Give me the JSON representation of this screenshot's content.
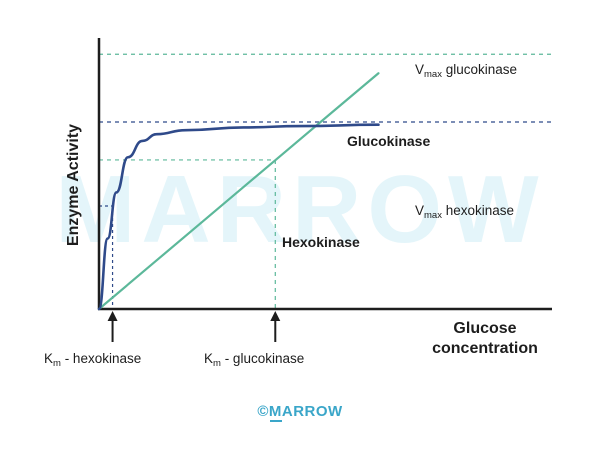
{
  "chart_data": {
    "type": "line",
    "ylabel": "Enzyme Activity",
    "xlabel_line1": "Glucose",
    "xlabel_line2": "concentration",
    "xlim": [
      0,
      10
    ],
    "ylim": [
      0,
      10
    ],
    "series": [
      {
        "name": "Glucokinase",
        "color": "#5cb89a",
        "x": [
          0,
          2,
          4,
          6,
          8,
          9.67
        ],
        "y": [
          0,
          1.8,
          3.6,
          5.4,
          7.2,
          8.7
        ]
      },
      {
        "name": "Hexokinase",
        "color": "#2f4a8a",
        "x": [
          0,
          0.3,
          0.6,
          1,
          1.5,
          2,
          3,
          5,
          7,
          9.67
        ],
        "y": [
          0,
          2.6,
          4.3,
          5.6,
          6.2,
          6.45,
          6.6,
          6.7,
          6.75,
          6.8
        ]
      }
    ],
    "reference_lines": {
      "vmax_glucokinase": {
        "y": 9.4,
        "label_main": "V",
        "label_sub": "max",
        "label_rest": " glucokinase"
      },
      "vmax_hexokinase": {
        "y": 6.9,
        "label_main": "V",
        "label_sub": "max",
        "label_rest": " hexokinase"
      },
      "half_vmax_glucokinase_y": 5.5,
      "half_vmax_hexokinase_y": 3.8
    },
    "km": {
      "hexokinase": {
        "x": 0.4,
        "label_main": "K",
        "label_sub": "m",
        "label_rest": " - hexokinase"
      },
      "glucokinase": {
        "x": 6.1,
        "label_main": "K",
        "label_sub": "m",
        "label_rest": " - glucokinase"
      }
    },
    "watermark": "MARROW",
    "footer": "©MARROW",
    "grid": false
  }
}
